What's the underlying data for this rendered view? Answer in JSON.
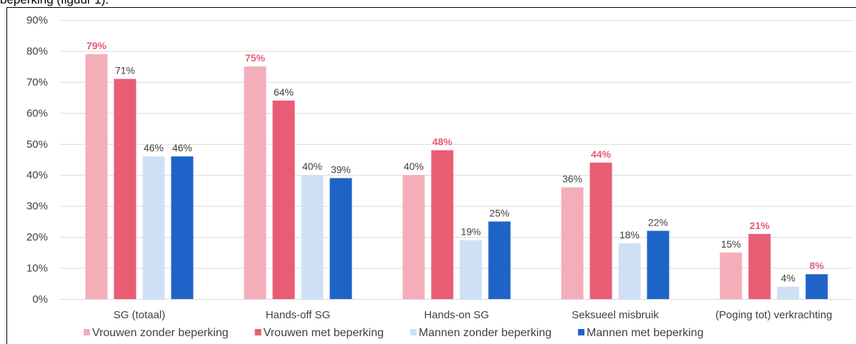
{
  "intro_text": "beperking (figuur 1).",
  "chart_data": {
    "type": "bar",
    "categories": [
      "SG (totaal)",
      "Hands-off SG",
      "Hands-on SG",
      "Seksueel misbruik",
      "(Poging tot) verkrachting"
    ],
    "series": [
      {
        "name": "Vrouwen zonder beperking",
        "color": "#f4aeb9",
        "values": [
          79,
          75,
          40,
          36,
          15
        ],
        "value_labels": [
          "79%",
          "75%",
          "40%",
          "36%",
          "15%"
        ],
        "highlight": [
          true,
          true,
          false,
          false,
          false
        ]
      },
      {
        "name": "Vrouwen met beperking",
        "color": "#e85d74",
        "values": [
          71,
          64,
          48,
          44,
          21
        ],
        "value_labels": [
          "71%",
          "64%",
          "48%",
          "44%",
          "21%"
        ],
        "highlight": [
          false,
          false,
          true,
          true,
          true
        ]
      },
      {
        "name": "Mannen zonder beperking",
        "color": "#cfe0f6",
        "values": [
          46,
          40,
          19,
          18,
          4
        ],
        "value_labels": [
          "46%",
          "40%",
          "19%",
          "18%",
          "4%"
        ],
        "highlight": [
          false,
          false,
          false,
          false,
          false
        ]
      },
      {
        "name": "Mannen met beperking",
        "color": "#1e64c8",
        "values": [
          46,
          39,
          25,
          22,
          8
        ],
        "value_labels": [
          "46%",
          "39%",
          "25%",
          "22%",
          "8%"
        ],
        "highlight": [
          false,
          false,
          false,
          false,
          true
        ]
      }
    ],
    "highlight_color": "#e85d74",
    "ylim": [
      0,
      90
    ],
    "yticks": [
      {
        "value": 0,
        "label": "0%"
      },
      {
        "value": 10,
        "label": "10%"
      },
      {
        "value": 20,
        "label": "20%"
      },
      {
        "value": 30,
        "label": "30%"
      },
      {
        "value": 40,
        "label": "40%"
      },
      {
        "value": 50,
        "label": "50%"
      },
      {
        "value": 60,
        "label": "60%"
      },
      {
        "value": 70,
        "label": "70%"
      },
      {
        "value": 80,
        "label": "80%"
      },
      {
        "value": 90,
        "label": "90%"
      }
    ],
    "grid": true,
    "legend": "bottom"
  }
}
